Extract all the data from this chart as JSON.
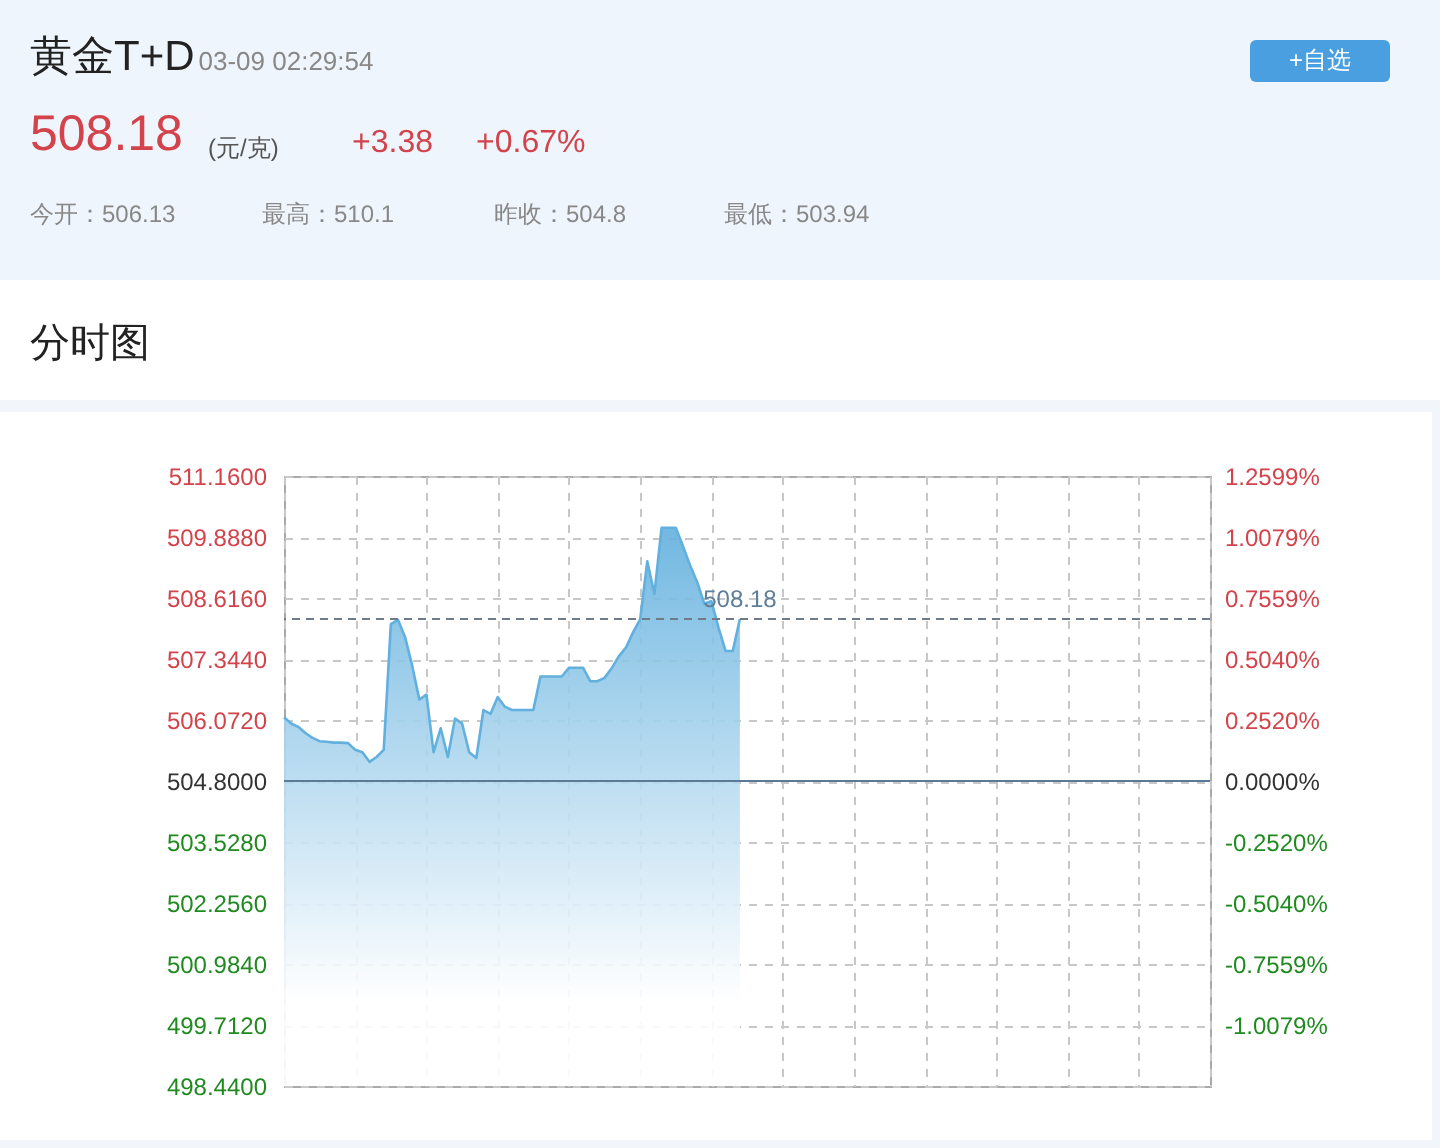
{
  "chart_data": {
    "type": "area",
    "title": "黄金T+D",
    "subtitle": "03-09 02:29:54",
    "annotations": [
      "508.18",
      "(元/克)",
      "+3.38",
      "+0.67%",
      "今开：506.13",
      "最高：510.1",
      "昨收：504.8",
      "最低：503.94",
      "+自选",
      "分时图"
    ],
    "categories": [
      null,
      null,
      null,
      null,
      null,
      null,
      null,
      null,
      null,
      null,
      null,
      null,
      null,
      null,
      null,
      null,
      null,
      null,
      null,
      null,
      null,
      null,
      null,
      null,
      null,
      null,
      null,
      null,
      null,
      null,
      null,
      null,
      null,
      null,
      null,
      null,
      null,
      null,
      null,
      null,
      null,
      null,
      null,
      null,
      null,
      null,
      null,
      null,
      null,
      null,
      null,
      null,
      null,
      null,
      null,
      null,
      null,
      null,
      null,
      null,
      null,
      null,
      null,
      null,
      null,
      null,
      null,
      null,
      null,
      null,
      null,
      null,
      null,
      null,
      null,
      null,
      null,
      null,
      null,
      null,
      null,
      null,
      null,
      null,
      null,
      null,
      null,
      null,
      null,
      null,
      null,
      null,
      null,
      null,
      null,
      null,
      null,
      null,
      null,
      null,
      null,
      null,
      null,
      null,
      null,
      null,
      null,
      null,
      null,
      null,
      null,
      null,
      null,
      null,
      null,
      null,
      null,
      null,
      null,
      null,
      null,
      null,
      null,
      null,
      null,
      null,
      null,
      null,
      null,
      null,
      null
    ],
    "series": [
      {
        "color": "#62b0de",
        "values": [
          506.13,
          506.0,
          505.93,
          505.8,
          505.7,
          505.63,
          505.62,
          505.6,
          505.6,
          505.59,
          505.45,
          505.4,
          505.2,
          505.3,
          505.45,
          508.07,
          508.16,
          507.8,
          507.2,
          506.5,
          506.6,
          505.4,
          505.9,
          505.3,
          506.1,
          506.0,
          505.4,
          505.28,
          506.28,
          506.2,
          506.55,
          506.35,
          506.28,
          506.28,
          506.28,
          506.28,
          506.98,
          506.98,
          506.98,
          506.98,
          507.16,
          507.16,
          507.16,
          506.88,
          506.88,
          506.95,
          507.15,
          507.4,
          507.58,
          507.9,
          508.17,
          509.38,
          508.7,
          510.08,
          510.08,
          510.08,
          509.7,
          509.3,
          508.95,
          508.5,
          508.55,
          508.0,
          507.51,
          507.51,
          508.18,
          null,
          null,
          null,
          null,
          null,
          null,
          null,
          null,
          null,
          null,
          null,
          null,
          null,
          null,
          null,
          null,
          null,
          null,
          null,
          null,
          null,
          null,
          null,
          null,
          null,
          null,
          null,
          null,
          null,
          null,
          null,
          null,
          null,
          null,
          null,
          null,
          null,
          null,
          null,
          null,
          null,
          null,
          null,
          null,
          null,
          null,
          null,
          null,
          null,
          null,
          null,
          null,
          null,
          null,
          null,
          null,
          null,
          null,
          null,
          null,
          null,
          null,
          null,
          null,
          null,
          null
        ]
      }
    ],
    "ylim": [
      498.44,
      511.16
    ],
    "yticks": [
      {
        "value": 498.44,
        "label": "498.4400"
      },
      {
        "value": 499.712,
        "label": "499.7120"
      },
      {
        "value": 500.984,
        "label": "500.9840"
      },
      {
        "value": 502.256,
        "label": "502.2560"
      },
      {
        "value": 503.528,
        "label": "503.5280"
      },
      {
        "value": 504.8,
        "label": "504.8000"
      },
      {
        "value": 506.072,
        "label": "506.0720"
      },
      {
        "value": 507.344,
        "label": "507.3440"
      },
      {
        "value": 508.616,
        "label": "508.6160"
      },
      {
        "value": 509.888,
        "label": "509.8880"
      },
      {
        "value": 511.16,
        "label": "511.1600"
      }
    ],
    "y2lim": [
      -1.2599,
      1.2599
    ],
    "y2ticks": [
      {
        "value": -1.2599,
        "label": null
      },
      {
        "value": -1.0079,
        "label": "-1.0079%"
      },
      {
        "value": -0.7559,
        "label": "-0.7559%"
      },
      {
        "value": -0.504,
        "label": "-0.5040%"
      },
      {
        "value": -0.252,
        "label": "-0.2520%"
      },
      {
        "value": 0,
        "label": "0.0000%"
      },
      {
        "value": 0.252,
        "label": "0.2520%"
      },
      {
        "value": 0.504,
        "label": "0.5040%"
      },
      {
        "value": 0.7559,
        "label": "0.7559%"
      },
      {
        "value": 1.0079,
        "label": "1.0079%"
      },
      {
        "value": 1.2599,
        "label": "1.2599%"
      }
    ],
    "ref_lines": [
      {
        "axis": "y",
        "value": 504.8,
        "color": "#5b7a96",
        "line_style": "solid"
      },
      {
        "axis": "y",
        "value": 508.18,
        "label": "508.18",
        "color": "#6f7b86",
        "line_style": "dashed"
      }
    ],
    "grid": true
  }
}
